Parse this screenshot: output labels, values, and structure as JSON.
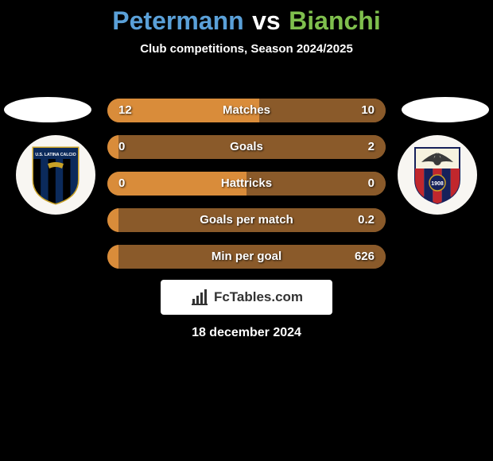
{
  "header": {
    "player_left": "Petermann",
    "vs": "vs",
    "player_right": "Bianchi",
    "subtitle": "Club competitions, Season 2024/2025",
    "player_left_color": "#5aa0d8",
    "player_right_color": "#7fbf4d"
  },
  "stats": {
    "rows": [
      {
        "label": "Matches",
        "left": "12",
        "right": "10",
        "left_pct": 54.5,
        "right_pct": 45.5
      },
      {
        "label": "Goals",
        "left": "0",
        "right": "2",
        "left_pct": 4.0,
        "right_pct": 96.0
      },
      {
        "label": "Hattricks",
        "left": "0",
        "right": "0",
        "left_pct": 50.0,
        "right_pct": 50.0
      },
      {
        "label": "Goals per match",
        "left": "",
        "right": "0.2",
        "left_pct": 4.0,
        "right_pct": 96.0
      },
      {
        "label": "Min per goal",
        "left": "",
        "right": "626",
        "left_pct": 4.0,
        "right_pct": 96.0
      }
    ],
    "bar_left_color": "#d98c3a",
    "bar_right_color": "#8a5a2a",
    "bar_track_color": "#6b4a26"
  },
  "crests": {
    "left": {
      "name": "us-latina-calcio",
      "stripe_colors": [
        "#0b2a5b",
        "#000000"
      ],
      "outline": "#c9a227",
      "label": "U.S. LATINA CALCIO",
      "label_color": "#ffffff",
      "band_color": "#0b2a5b"
    },
    "right": {
      "name": "casertana-fc",
      "top_color": "#f6f2df",
      "stripe_colors": [
        "#c1272d",
        "#16215b"
      ],
      "eagle_color": "#3a3a3a",
      "year": "1908",
      "year_color": "#ffffff"
    }
  },
  "attribution": {
    "label": "FcTables.com"
  },
  "date": {
    "text": "18 december 2024"
  },
  "colors": {
    "background": "#000000",
    "text": "#ffffff"
  }
}
